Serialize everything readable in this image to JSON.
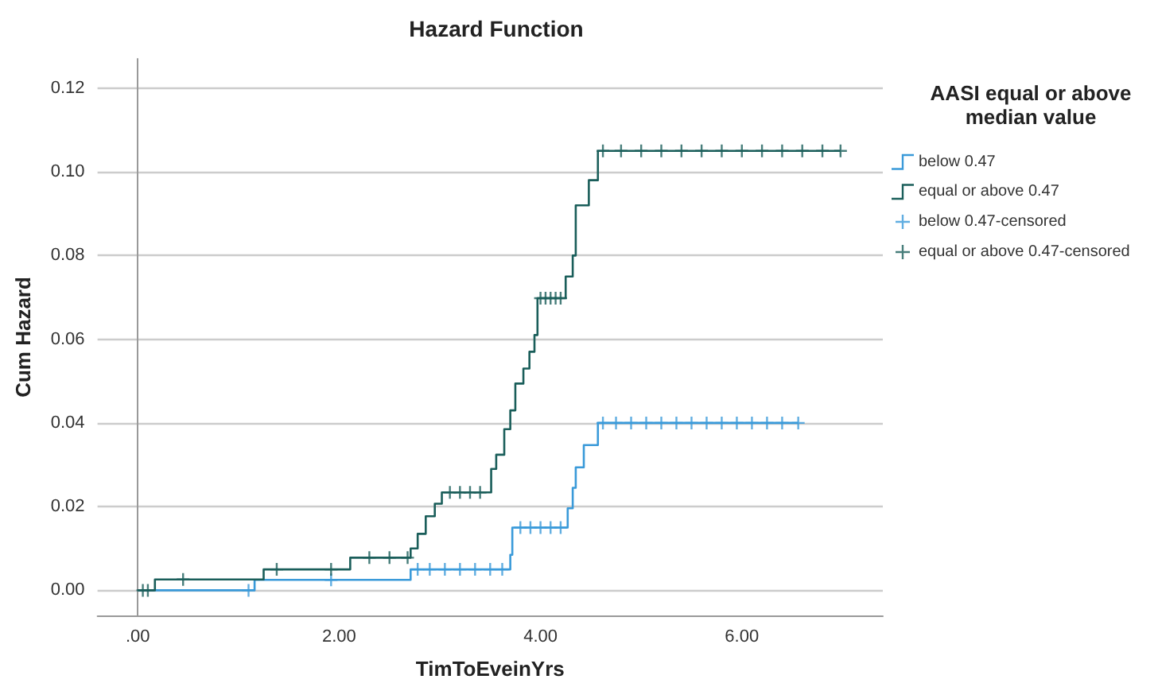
{
  "chart_data": {
    "type": "step",
    "title": "Hazard Function",
    "xlabel": "TimToEveinYrs",
    "ylabel": "Cum Hazard",
    "legend_title": "AASI equal or above median value",
    "legend": "right",
    "grid": "y",
    "xlim": [
      -0.4,
      7.4
    ],
    "xticks": [
      {
        "value": 0,
        "label": ".00"
      },
      {
        "value": 2,
        "label": "2.00"
      },
      {
        "value": 4,
        "label": "4.00"
      },
      {
        "value": 6,
        "label": "6.00"
      }
    ],
    "ylim": [
      -0.006,
      0.127
    ],
    "yticks": [
      {
        "value": 0,
        "label": "0.00"
      },
      {
        "value": 0.02,
        "label": "0.02"
      },
      {
        "value": 0.04,
        "label": "0.04"
      },
      {
        "value": 0.06,
        "label": "0.06"
      },
      {
        "value": 0.08,
        "label": "0.08"
      },
      {
        "value": 0.1,
        "label": "0.10"
      },
      {
        "value": 0.12,
        "label": "0.12"
      }
    ],
    "series": [
      {
        "name": "below 0.47",
        "marker": "none",
        "color": "#3a9ad9",
        "x": [
          0,
          1.16,
          2.71,
          3.7,
          3.72,
          4.27,
          4.32,
          4.35,
          4.43,
          4.57,
          6.56
        ],
        "values": [
          0,
          0.0025,
          0.005,
          0.0085,
          0.015,
          0.0196,
          0.0245,
          0.0294,
          0.0347,
          0.04,
          0.04
        ]
      },
      {
        "name": "equal or above 0.47",
        "marker": "none",
        "color": "#1a5e5a",
        "x": [
          0,
          0.17,
          1.25,
          2.11,
          2.71,
          2.78,
          2.86,
          2.95,
          3.02,
          3.12,
          3.46,
          3.51,
          3.56,
          3.64,
          3.7,
          3.75,
          3.83,
          3.89,
          3.94,
          3.97,
          4.25,
          4.32,
          4.35,
          4.48,
          4.57,
          6.98
        ],
        "values": [
          0,
          0.0026,
          0.005,
          0.0078,
          0.01,
          0.0135,
          0.0177,
          0.0207,
          0.0234,
          0.0234,
          0.0234,
          0.029,
          0.0324,
          0.0385,
          0.043,
          0.0494,
          0.053,
          0.057,
          0.061,
          0.0698,
          0.075,
          0.08,
          0.092,
          0.098,
          0.105,
          0.105
        ]
      },
      {
        "name": "below 0.47-censored",
        "type": "scatter",
        "marker": "cross",
        "color": "#3a9ad9",
        "x": [
          1.1,
          1.92,
          2.78,
          2.9,
          3.05,
          3.2,
          3.35,
          3.5,
          3.62,
          3.8,
          3.9,
          4.0,
          4.1,
          4.2,
          4.62,
          4.75,
          4.9,
          5.05,
          5.2,
          5.35,
          5.5,
          5.65,
          5.8,
          5.95,
          6.1,
          6.25,
          6.4,
          6.56
        ],
        "values": [
          0,
          0.0025,
          0.005,
          0.005,
          0.005,
          0.005,
          0.005,
          0.005,
          0.005,
          0.015,
          0.015,
          0.015,
          0.015,
          0.015,
          0.04,
          0.04,
          0.04,
          0.04,
          0.04,
          0.04,
          0.04,
          0.04,
          0.04,
          0.04,
          0.04,
          0.04,
          0.04,
          0.04
        ]
      },
      {
        "name": "equal or above 0.47-censored",
        "type": "scatter",
        "marker": "cross",
        "color": "#1a5e5a",
        "x": [
          0.05,
          0.1,
          0.45,
          1.38,
          1.92,
          2.3,
          2.5,
          2.68,
          3.1,
          3.2,
          3.3,
          3.4,
          4.0,
          4.05,
          4.1,
          4.15,
          4.2,
          4.62,
          4.8,
          5.0,
          5.2,
          5.4,
          5.6,
          5.8,
          6.0,
          6.2,
          6.4,
          6.6,
          6.8,
          6.98
        ],
        "values": [
          0,
          0,
          0.0026,
          0.005,
          0.005,
          0.0078,
          0.0078,
          0.0078,
          0.0234,
          0.0234,
          0.0234,
          0.0234,
          0.0698,
          0.0698,
          0.0698,
          0.0698,
          0.0698,
          0.105,
          0.105,
          0.105,
          0.105,
          0.105,
          0.105,
          0.105,
          0.105,
          0.105,
          0.105,
          0.105,
          0.105,
          0.105
        ]
      }
    ]
  }
}
